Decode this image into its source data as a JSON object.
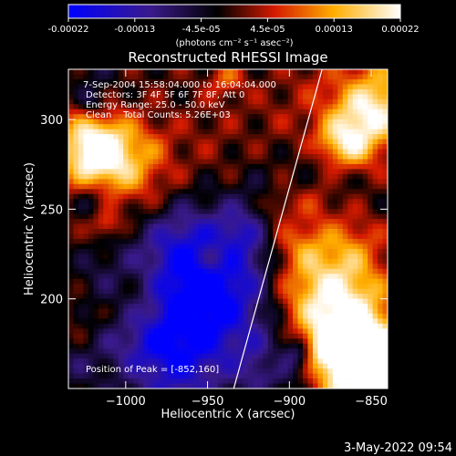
{
  "colorbar": {
    "ticks": [
      "-0.00022",
      "-0.00013",
      "-4.5e-05",
      "4.5e-05",
      "0.00013",
      "0.00022"
    ],
    "units": "(photons cm⁻² s⁻¹ asec⁻²)"
  },
  "chart_data": {
    "type": "heatmap",
    "title": "Reconstructed RHESSI Image",
    "xlabel": "Heliocentric X (arcsec)",
    "ylabel": "Heliocentric Y (arcsec)",
    "xlim": [
      -1035,
      -840
    ],
    "ylim": [
      150,
      328
    ],
    "xticks": [
      -1000,
      -950,
      -900,
      -850
    ],
    "yticks": [
      200,
      250,
      300
    ],
    "xtick_labels": [
      "−1000",
      "−950",
      "−900",
      "−850"
    ],
    "ytick_labels": [
      "200",
      "250",
      "300"
    ],
    "value_range": [
      -0.00022,
      0.00022
    ],
    "colormap": "RHESSI blue-black-red-yellow-white",
    "peak": [
      -852,
      160
    ],
    "limb_line": [
      [
        -934,
        150
      ],
      [
        -880,
        328
      ]
    ],
    "annotations": {
      "time": "7-Sep-2004 15:58:04.000 to 16:04:04.000",
      "detectors": "Detectors: 3F 4F 5F 6F 7F 8F, Att 0",
      "energy": "Energy Range: 25.0 - 50.0 keV",
      "method": "Clean    Total Counts: 5.26E+03",
      "peak": "Position of Peak = [-852,160]"
    }
  },
  "footer": {
    "timestamp": "3-May-2022 09:54"
  }
}
